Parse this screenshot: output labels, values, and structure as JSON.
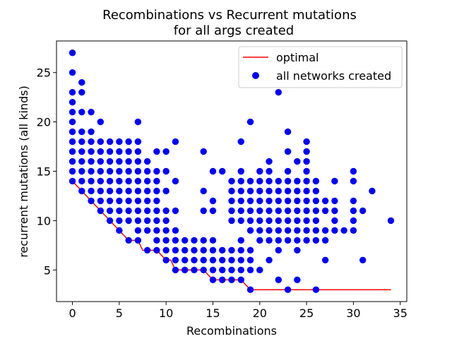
{
  "chart_data": {
    "type": "scatter",
    "title_lines": [
      "Recombinations vs Recurrent mutations",
      "for all args created"
    ],
    "xlabel": "Recombinations",
    "ylabel": "recurrent mutations (all kinds)",
    "xlim": [
      -1.7,
      35.7
    ],
    "ylim": [
      1.8,
      28.2
    ],
    "xticks": [
      0,
      5,
      10,
      15,
      20,
      25,
      30,
      35
    ],
    "yticks": [
      5,
      10,
      15,
      20,
      25
    ],
    "grid": false,
    "legend_position": "top-right",
    "series": [
      {
        "name": "optimal",
        "kind": "step-line",
        "color": "#ff0000",
        "points": [
          [
            0,
            14
          ],
          [
            1,
            13
          ],
          [
            2,
            12
          ],
          [
            3,
            11
          ],
          [
            4,
            10
          ],
          [
            5,
            9
          ],
          [
            6,
            8
          ],
          [
            7,
            8
          ],
          [
            7.5,
            7
          ],
          [
            8,
            7
          ],
          [
            9,
            7
          ],
          [
            10,
            6
          ],
          [
            10.5,
            6
          ],
          [
            11,
            5
          ],
          [
            12,
            5
          ],
          [
            13,
            5
          ],
          [
            14,
            5
          ],
          [
            15,
            4
          ],
          [
            16,
            4
          ],
          [
            17,
            4
          ],
          [
            18,
            4
          ],
          [
            19,
            3
          ],
          [
            20,
            3
          ],
          [
            21,
            3
          ],
          [
            22,
            3
          ],
          [
            23,
            3
          ],
          [
            24,
            3
          ],
          [
            25,
            3
          ],
          [
            26,
            3
          ],
          [
            27,
            3
          ],
          [
            28,
            3
          ],
          [
            29,
            3
          ],
          [
            30,
            3
          ],
          [
            31,
            3
          ],
          [
            32,
            3
          ],
          [
            33,
            3
          ],
          [
            34,
            3
          ]
        ]
      },
      {
        "name": "all networks created",
        "kind": "scatter",
        "color": "#0000ff",
        "points": [
          [
            0,
            27
          ],
          [
            0,
            25
          ],
          [
            0,
            23
          ],
          [
            0,
            22
          ],
          [
            0,
            21
          ],
          [
            0,
            20
          ],
          [
            0,
            19
          ],
          [
            0,
            18
          ],
          [
            0,
            17
          ],
          [
            0,
            16
          ],
          [
            0,
            15
          ],
          [
            0,
            14
          ],
          [
            1,
            24
          ],
          [
            1,
            23
          ],
          [
            1,
            21
          ],
          [
            1,
            19
          ],
          [
            1,
            18
          ],
          [
            1,
            17
          ],
          [
            1,
            16
          ],
          [
            1,
            15
          ],
          [
            1,
            14
          ],
          [
            1,
            13
          ],
          [
            2,
            21
          ],
          [
            2,
            19
          ],
          [
            2,
            18
          ],
          [
            2,
            17
          ],
          [
            2,
            16
          ],
          [
            2,
            15
          ],
          [
            2,
            14
          ],
          [
            2,
            13
          ],
          [
            2,
            12
          ],
          [
            3,
            20
          ],
          [
            3,
            18
          ],
          [
            3,
            17
          ],
          [
            3,
            16
          ],
          [
            3,
            15
          ],
          [
            3,
            14
          ],
          [
            3,
            13
          ],
          [
            3,
            12
          ],
          [
            3,
            11
          ],
          [
            4,
            18
          ],
          [
            4,
            17
          ],
          [
            4,
            16
          ],
          [
            4,
            15
          ],
          [
            4,
            14
          ],
          [
            4,
            13
          ],
          [
            4,
            12
          ],
          [
            4,
            11
          ],
          [
            4,
            10
          ],
          [
            5,
            18
          ],
          [
            5,
            17
          ],
          [
            5,
            16
          ],
          [
            5,
            15
          ],
          [
            5,
            14
          ],
          [
            5,
            13
          ],
          [
            5,
            12
          ],
          [
            5,
            11
          ],
          [
            5,
            10
          ],
          [
            5,
            9
          ],
          [
            6,
            18
          ],
          [
            6,
            17
          ],
          [
            6,
            16
          ],
          [
            6,
            15
          ],
          [
            6,
            14
          ],
          [
            6,
            13
          ],
          [
            6,
            12
          ],
          [
            6,
            11
          ],
          [
            6,
            10
          ],
          [
            6,
            8
          ],
          [
            7,
            20
          ],
          [
            7,
            18
          ],
          [
            7,
            17
          ],
          [
            7,
            16
          ],
          [
            7,
            15
          ],
          [
            7,
            14
          ],
          [
            7,
            13
          ],
          [
            7,
            12
          ],
          [
            7,
            11
          ],
          [
            7,
            10
          ],
          [
            7,
            9
          ],
          [
            7,
            8
          ],
          [
            8,
            16
          ],
          [
            8,
            15
          ],
          [
            8,
            14
          ],
          [
            8,
            13
          ],
          [
            8,
            12
          ],
          [
            8,
            11
          ],
          [
            8,
            10
          ],
          [
            8,
            9
          ],
          [
            8,
            7
          ],
          [
            9,
            17
          ],
          [
            9,
            15
          ],
          [
            9,
            14
          ],
          [
            9,
            13
          ],
          [
            9,
            12
          ],
          [
            9,
            11
          ],
          [
            9,
            10
          ],
          [
            9,
            9
          ],
          [
            9,
            8
          ],
          [
            9,
            7
          ],
          [
            10,
            17
          ],
          [
            10,
            15
          ],
          [
            10,
            13
          ],
          [
            10,
            11
          ],
          [
            10,
            10
          ],
          [
            10,
            9
          ],
          [
            10,
            8
          ],
          [
            10,
            7
          ],
          [
            10,
            6
          ],
          [
            11,
            18
          ],
          [
            11,
            14
          ],
          [
            11,
            11
          ],
          [
            11,
            9
          ],
          [
            11,
            8
          ],
          [
            11,
            7
          ],
          [
            11,
            6
          ],
          [
            11,
            5
          ],
          [
            12,
            8
          ],
          [
            12,
            7
          ],
          [
            12,
            6
          ],
          [
            12,
            5
          ],
          [
            13,
            8
          ],
          [
            13,
            7
          ],
          [
            13,
            6
          ],
          [
            13,
            5
          ],
          [
            14,
            17
          ],
          [
            14,
            13
          ],
          [
            14,
            11
          ],
          [
            14,
            8
          ],
          [
            14,
            7
          ],
          [
            14,
            6
          ],
          [
            14,
            5
          ],
          [
            15,
            15
          ],
          [
            15,
            12
          ],
          [
            15,
            11
          ],
          [
            15,
            8
          ],
          [
            15,
            7
          ],
          [
            15,
            6
          ],
          [
            15,
            5
          ],
          [
            15,
            4
          ],
          [
            16,
            15
          ],
          [
            16,
            7
          ],
          [
            16,
            6
          ],
          [
            16,
            5
          ],
          [
            16,
            4
          ],
          [
            17,
            14
          ],
          [
            17,
            13
          ],
          [
            17,
            12
          ],
          [
            17,
            11
          ],
          [
            17,
            10
          ],
          [
            17,
            7
          ],
          [
            17,
            6
          ],
          [
            17,
            5
          ],
          [
            17,
            4
          ],
          [
            18,
            18
          ],
          [
            18,
            15
          ],
          [
            18,
            14
          ],
          [
            18,
            13
          ],
          [
            18,
            12
          ],
          [
            18,
            11
          ],
          [
            18,
            10
          ],
          [
            18,
            8
          ],
          [
            18,
            7
          ],
          [
            18,
            6
          ],
          [
            18,
            5
          ],
          [
            18,
            4
          ],
          [
            19,
            20
          ],
          [
            19,
            14
          ],
          [
            19,
            13
          ],
          [
            19,
            12
          ],
          [
            19,
            11
          ],
          [
            19,
            10
          ],
          [
            19,
            9
          ],
          [
            19,
            7
          ],
          [
            19,
            6
          ],
          [
            19,
            5
          ],
          [
            19,
            3
          ],
          [
            20,
            15
          ],
          [
            20,
            14
          ],
          [
            20,
            13
          ],
          [
            20,
            12
          ],
          [
            20,
            11
          ],
          [
            20,
            10
          ],
          [
            20,
            9
          ],
          [
            20,
            8
          ],
          [
            20,
            5
          ],
          [
            21,
            16
          ],
          [
            21,
            15
          ],
          [
            21,
            14
          ],
          [
            21,
            13
          ],
          [
            21,
            12
          ],
          [
            21,
            11
          ],
          [
            21,
            10
          ],
          [
            21,
            9
          ],
          [
            21,
            8
          ],
          [
            21,
            6
          ],
          [
            22,
            23
          ],
          [
            22,
            14
          ],
          [
            22,
            13
          ],
          [
            22,
            12
          ],
          [
            22,
            11
          ],
          [
            22,
            10
          ],
          [
            22,
            9
          ],
          [
            22,
            8
          ],
          [
            22,
            7
          ],
          [
            22,
            4
          ],
          [
            23,
            19
          ],
          [
            23,
            17
          ],
          [
            23,
            15
          ],
          [
            23,
            14
          ],
          [
            23,
            13
          ],
          [
            23,
            12
          ],
          [
            23,
            11
          ],
          [
            23,
            10
          ],
          [
            23,
            9
          ],
          [
            23,
            8
          ],
          [
            23,
            3
          ],
          [
            24,
            16
          ],
          [
            24,
            14
          ],
          [
            24,
            13
          ],
          [
            24,
            12
          ],
          [
            24,
            11
          ],
          [
            24,
            10
          ],
          [
            24,
            9
          ],
          [
            24,
            8
          ],
          [
            24,
            7
          ],
          [
            24,
            4
          ],
          [
            25,
            18
          ],
          [
            25,
            17
          ],
          [
            25,
            16
          ],
          [
            25,
            15
          ],
          [
            25,
            14
          ],
          [
            25,
            13
          ],
          [
            25,
            12
          ],
          [
            25,
            11
          ],
          [
            25,
            10
          ],
          [
            25,
            9
          ],
          [
            25,
            8
          ],
          [
            26,
            14
          ],
          [
            26,
            13
          ],
          [
            26,
            12
          ],
          [
            26,
            11
          ],
          [
            26,
            10
          ],
          [
            26,
            9
          ],
          [
            26,
            8
          ],
          [
            26,
            3
          ],
          [
            27,
            12
          ],
          [
            27,
            11
          ],
          [
            27,
            9
          ],
          [
            27,
            8
          ],
          [
            27,
            6
          ],
          [
            28,
            14
          ],
          [
            28,
            12
          ],
          [
            28,
            11
          ],
          [
            28,
            10
          ],
          [
            28,
            9
          ],
          [
            29,
            9
          ],
          [
            30,
            15
          ],
          [
            30,
            14
          ],
          [
            30,
            12
          ],
          [
            30,
            11
          ],
          [
            30,
            10
          ],
          [
            30,
            9
          ],
          [
            31,
            11
          ],
          [
            31,
            6
          ],
          [
            32,
            13
          ],
          [
            34,
            10
          ]
        ]
      }
    ]
  }
}
